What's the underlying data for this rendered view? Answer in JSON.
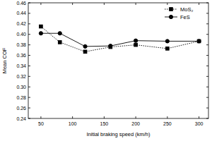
{
  "chart_data": {
    "type": "line",
    "x_label": "Initial braking speed (km/h)",
    "y_label": "Mean COF",
    "x": [
      50,
      80,
      120,
      160,
      200,
      250,
      300
    ],
    "series": [
      {
        "name": "MoS₂",
        "color": "#000000",
        "marker": "square",
        "line_style": "dotted",
        "values": [
          0.415,
          0.385,
          0.367,
          0.376,
          0.38,
          0.373,
          0.387
        ]
      },
      {
        "name": "FeS",
        "color": "#000000",
        "marker": "circle",
        "line_style": "solid",
        "values": [
          0.402,
          0.402,
          0.377,
          0.378,
          0.388,
          0.387,
          0.387
        ]
      }
    ],
    "xlim": [
      30,
      315
    ],
    "xticks": [
      50,
      100,
      150,
      200,
      250,
      300
    ],
    "ylim": [
      0.24,
      0.46
    ],
    "yticks": [
      0.24,
      0.26,
      0.28,
      {
        "value": 0.3,
        "label": "0.30"
      },
      0.32,
      0.34,
      0.36,
      0.38,
      {
        "value": 0.4,
        "label": "0.40"
      },
      0.42,
      0.44,
      0.46
    ],
    "grid": false,
    "legend": "top-right"
  }
}
